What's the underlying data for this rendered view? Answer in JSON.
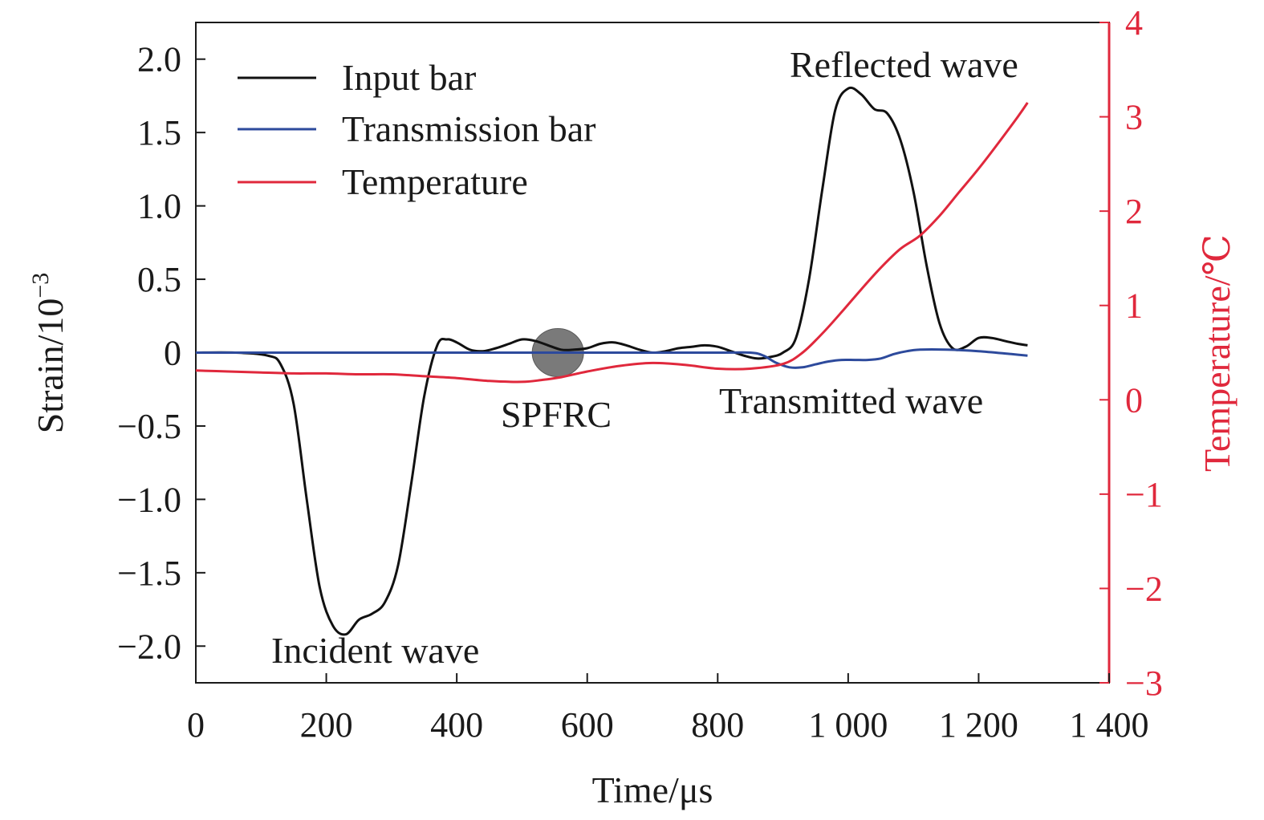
{
  "chart_data": {
    "type": "line",
    "x_axis": {
      "label": "Time/μs",
      "range": [
        0,
        1400
      ],
      "ticks": [
        0,
        200,
        400,
        600,
        800,
        1000,
        1200,
        1400
      ],
      "tick_labels": [
        "0",
        "200",
        "400",
        "600",
        "800",
        "1 000",
        "1 200",
        "1 400"
      ]
    },
    "y_left": {
      "label_main": "Strain/10",
      "label_sup": "−3",
      "range": [
        -2.25,
        2.25
      ],
      "ticks": [
        2.0,
        1.5,
        1.0,
        0.5,
        0,
        -0.5,
        -1.0,
        -1.5,
        -2.0
      ],
      "tick_labels": [
        "2.0",
        "1.5",
        "1.0",
        "0.5",
        "0",
        "−0.5",
        "−1.0",
        "−1.5",
        "−2.0"
      ]
    },
    "y_right": {
      "label": "Temperature/℃",
      "range": [
        -3,
        4
      ],
      "ticks": [
        4,
        3,
        2,
        1,
        0,
        -1,
        -2,
        -3
      ],
      "tick_labels": [
        "4",
        "3",
        "2",
        "1",
        "0",
        "−1",
        "−2",
        "−3"
      ],
      "color": "#e0283c"
    },
    "series": [
      {
        "name": "Input bar",
        "axis": "left",
        "color": "#111111",
        "x": [
          0,
          60,
          110,
          130,
          150,
          170,
          190,
          210,
          230,
          250,
          270,
          290,
          310,
          330,
          350,
          370,
          385,
          400,
          420,
          440,
          460,
          480,
          500,
          520,
          540,
          560,
          580,
          600,
          620,
          640,
          660,
          680,
          700,
          720,
          740,
          760,
          780,
          800,
          820,
          840,
          860,
          880,
          900,
          920,
          940,
          960,
          980,
          1000,
          1020,
          1040,
          1060,
          1080,
          1100,
          1120,
          1140,
          1160,
          1180,
          1200,
          1220,
          1240,
          1260,
          1275
        ],
        "y": [
          0,
          0,
          -0.02,
          -0.08,
          -0.35,
          -1.0,
          -1.6,
          -1.86,
          -1.92,
          -1.82,
          -1.78,
          -1.7,
          -1.45,
          -0.9,
          -0.3,
          0.05,
          0.09,
          0.07,
          0.02,
          0.01,
          0.03,
          0.06,
          0.09,
          0.08,
          0.05,
          0.02,
          0.02,
          0.03,
          0.06,
          0.07,
          0.05,
          0.02,
          0.0,
          0.01,
          0.03,
          0.04,
          0.05,
          0.04,
          0.01,
          -0.02,
          -0.04,
          -0.03,
          0.0,
          0.1,
          0.5,
          1.1,
          1.65,
          1.8,
          1.76,
          1.66,
          1.63,
          1.45,
          1.1,
          0.6,
          0.2,
          0.03,
          0.04,
          0.1,
          0.1,
          0.08,
          0.06,
          0.05
        ]
      },
      {
        "name": "Transmission bar",
        "axis": "left",
        "color": "#2d4a9c",
        "x": [
          0,
          200,
          400,
          600,
          800,
          850,
          870,
          890,
          910,
          930,
          950,
          970,
          990,
          1010,
          1030,
          1050,
          1070,
          1090,
          1110,
          1150,
          1200,
          1250,
          1275
        ],
        "y": [
          0,
          0,
          0,
          0,
          0,
          0,
          -0.02,
          -0.07,
          -0.1,
          -0.1,
          -0.08,
          -0.06,
          -0.05,
          -0.05,
          -0.05,
          -0.04,
          -0.01,
          0.01,
          0.02,
          0.02,
          0.01,
          -0.01,
          -0.02
        ]
      },
      {
        "name": "Temperature",
        "axis": "right",
        "color": "#e0283c",
        "x": [
          0,
          50,
          100,
          150,
          200,
          250,
          300,
          350,
          400,
          450,
          500,
          530,
          560,
          600,
          650,
          700,
          750,
          800,
          850,
          900,
          930,
          960,
          990,
          1020,
          1050,
          1080,
          1110,
          1140,
          1170,
          1200,
          1230,
          1260,
          1275
        ],
        "y": [
          0.31,
          0.3,
          0.29,
          0.28,
          0.28,
          0.27,
          0.27,
          0.25,
          0.23,
          0.2,
          0.19,
          0.21,
          0.24,
          0.3,
          0.36,
          0.39,
          0.37,
          0.33,
          0.33,
          0.38,
          0.5,
          0.7,
          0.93,
          1.17,
          1.4,
          1.6,
          1.74,
          1.95,
          2.2,
          2.45,
          2.72,
          3.0,
          3.15
        ]
      }
    ],
    "legend": {
      "position": "top-left",
      "entries": [
        {
          "label": "Input bar",
          "color": "#111111"
        },
        {
          "label": "Transmission bar",
          "color": "#2d4a9c"
        },
        {
          "label": "Temperature",
          "color": "#e0283c"
        }
      ]
    },
    "annotations": [
      {
        "text": "Reflected wave",
        "x": 1000,
        "y": 1.95
      },
      {
        "text": "Transmitted wave",
        "x": 1000,
        "y": -0.33
      },
      {
        "text": "Incident wave",
        "x": 215,
        "y": -2.05
      },
      {
        "text": "SPFRC",
        "x": 565,
        "y": -0.4
      }
    ],
    "specimen_marker": {
      "label": "SPFRC",
      "x": 555,
      "y": 0.0,
      "color": "#7a7a7a"
    },
    "grid": false
  }
}
